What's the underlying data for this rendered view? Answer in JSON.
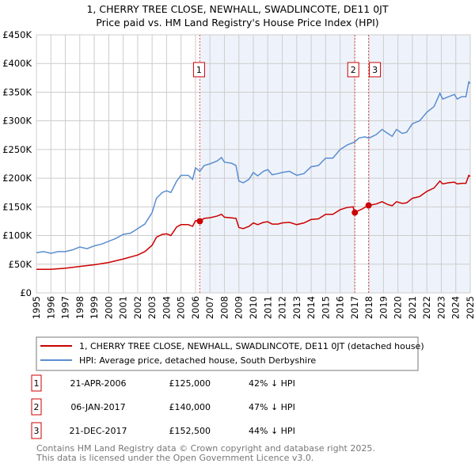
{
  "chart_data": {
    "type": "line",
    "title": "1, CHERRY TREE CLOSE, NEWHALL, SWADLINCOTE, DE11 0JT",
    "subtitle": "Price paid vs. HM Land Registry's House Price Index (HPI)",
    "xlim": [
      1995,
      2025
    ],
    "ylim": [
      0,
      450000
    ],
    "x_ticks": [
      "1995",
      "1996",
      "1997",
      "1998",
      "1999",
      "2000",
      "2001",
      "2002",
      "2003",
      "2004",
      "2005",
      "2006",
      "2007",
      "2008",
      "2009",
      "2010",
      "2011",
      "2012",
      "2013",
      "2014",
      "2015",
      "2016",
      "2017",
      "2018",
      "2019",
      "2020",
      "2021",
      "2022",
      "2023",
      "2024",
      "2025"
    ],
    "y_ticks": [
      {
        "v": 0,
        "label": "£0"
      },
      {
        "v": 50000,
        "label": "£50K"
      },
      {
        "v": 100000,
        "label": "£100K"
      },
      {
        "v": 150000,
        "label": "£150K"
      },
      {
        "v": 200000,
        "label": "£200K"
      },
      {
        "v": 250000,
        "label": "£250K"
      },
      {
        "v": 300000,
        "label": "£300K"
      },
      {
        "v": 350000,
        "label": "£350K"
      },
      {
        "v": 400000,
        "label": "£400K"
      },
      {
        "v": 450000,
        "label": "£450K"
      }
    ],
    "grid": true,
    "series": [
      {
        "name": "1, CHERRY TREE CLOSE, NEWHALL, SWADLINCOTE, DE11 0JT (detached house)",
        "color": "#cc0000",
        "x": [
          1995,
          1996,
          1997,
          1998,
          1999,
          2000,
          2001,
          2002,
          2002.5,
          2003,
          2003.3,
          2003.7,
          2004,
          2004.3,
          2004.7,
          2005,
          2005.5,
          2005.8,
          2006,
          2006.3,
          2006.6,
          2007,
          2007.5,
          2007.8,
          2008,
          2008.8,
          2009,
          2009.3,
          2009.7,
          2010,
          2010.3,
          2010.7,
          2011,
          2011.3,
          2011.7,
          2012,
          2012.5,
          2013,
          2013.5,
          2014,
          2014.5,
          2015,
          2015.5,
          2016,
          2016.5,
          2016.9,
          2017.0,
          2017.5,
          2017.97,
          2018.5,
          2018.9,
          2019.3,
          2019.6,
          2019.9,
          2020.3,
          2020.6,
          2021,
          2021.5,
          2022,
          2022.5,
          2022.9,
          2023.1,
          2023.5,
          2023.9,
          2024.1,
          2024.4,
          2024.7,
          2024.9,
          2025
        ],
        "y": [
          41,
          41,
          43,
          46,
          49,
          53,
          59,
          66,
          72,
          83,
          97,
          102,
          103,
          100,
          115,
          119,
          119,
          116,
          126,
          125,
          130,
          131,
          134,
          137,
          132,
          130,
          114,
          112,
          116,
          122,
          119,
          123,
          124,
          120,
          120,
          122,
          123,
          119,
          122,
          128,
          129,
          137,
          137,
          145,
          149,
          150,
          140,
          146,
          152.5,
          155,
          159,
          154,
          152,
          159,
          156,
          157,
          165,
          168,
          177,
          183,
          195,
          190,
          192,
          193,
          190,
          191,
          191,
          205,
          203
        ]
      },
      {
        "name": "HPI: Average price, detached house, South Derbyshire",
        "color": "#5b8dd0",
        "x": [
          1995,
          1995.5,
          1996,
          1996.5,
          1997,
          1997.5,
          1998,
          1998.5,
          1999,
          1999.5,
          2000,
          2000.5,
          2001,
          2001.5,
          2002,
          2002.5,
          2003,
          2003.3,
          2003.7,
          2004,
          2004.3,
          2004.7,
          2005,
          2005.5,
          2005.8,
          2006,
          2006.3,
          2006.6,
          2007,
          2007.5,
          2007.8,
          2008,
          2008.5,
          2008.8,
          2009,
          2009.3,
          2009.7,
          2010,
          2010.3,
          2010.7,
          2011,
          2011.3,
          2011.7,
          2012,
          2012.5,
          2013,
          2013.5,
          2014,
          2014.5,
          2015,
          2015.5,
          2016,
          2016.5,
          2017,
          2017.3,
          2017.7,
          2018,
          2018.5,
          2018.9,
          2019.3,
          2019.6,
          2019.9,
          2020.3,
          2020.6,
          2021,
          2021.5,
          2022,
          2022.5,
          2022.9,
          2023.1,
          2023.5,
          2023.9,
          2024.1,
          2024.4,
          2024.7,
          2024.9,
          2025
        ],
        "y": [
          70,
          72,
          69,
          72,
          72,
          75,
          80,
          77,
          82,
          85,
          90,
          95,
          102,
          104,
          112,
          120,
          140,
          165,
          175,
          178,
          175,
          195,
          205,
          205,
          198,
          218,
          212,
          222,
          225,
          230,
          236,
          228,
          226,
          222,
          195,
          192,
          198,
          210,
          204,
          212,
          215,
          206,
          208,
          210,
          212,
          205,
          208,
          220,
          222,
          235,
          235,
          250,
          258,
          263,
          270,
          272,
          270,
          276,
          285,
          278,
          273,
          285,
          278,
          280,
          295,
          300,
          315,
          325,
          348,
          338,
          342,
          346,
          338,
          342,
          342,
          368,
          365
        ]
      }
    ],
    "y_units": "thousands GBP",
    "sales": [
      {
        "n": "1",
        "x": 2006.3,
        "date": "21-APR-2006",
        "price": "£125,000",
        "value": 125,
        "hpi": "42% ↓ HPI"
      },
      {
        "n": "2",
        "x": 2017.02,
        "date": "06-JAN-2017",
        "price": "£140,000",
        "value": 140,
        "hpi": "47% ↓ HPI"
      },
      {
        "n": "3",
        "x": 2017.97,
        "date": "21-DEC-2017",
        "price": "£152,500",
        "value": 152.5,
        "hpi": "44% ↓ HPI"
      }
    ],
    "legend_placement": "bottom",
    "footer": [
      "Contains HM Land Registry data © Crown copyright and database right 2025.",
      "This data is licensed under the Open Government Licence v3.0."
    ]
  }
}
